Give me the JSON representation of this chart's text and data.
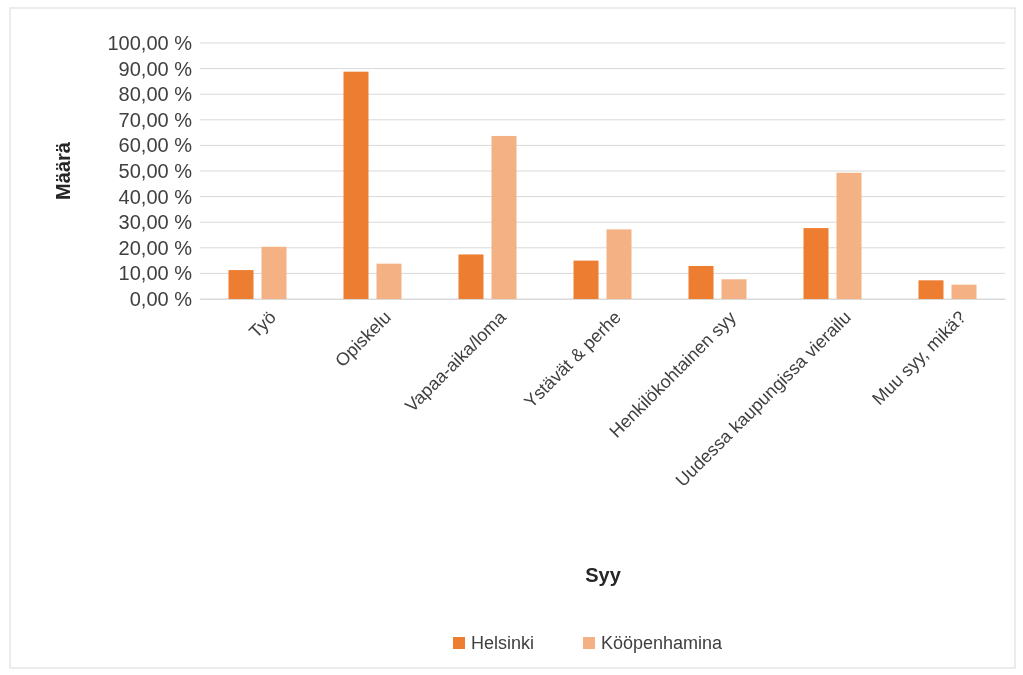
{
  "chart_data": {
    "type": "bar",
    "xlabel": "Syy",
    "ylabel": "Määrä",
    "categories": [
      "Työ",
      "Opiskelu",
      "Vapaa-aika/loma",
      "Ystävät & perhe",
      "Henkilökohtainen syy",
      "Uudessa kaupungissa vierailu",
      "Muu syy, mikä?"
    ],
    "series": [
      {
        "name": "Helsinki",
        "color": "#ed7d31",
        "values": [
          11.3,
          88.8,
          17.4,
          15.0,
          12.9,
          27.7,
          7.3
        ]
      },
      {
        "name": "Kööpenhamina",
        "color": "#f4b183",
        "values": [
          20.4,
          13.8,
          63.7,
          27.2,
          7.7,
          49.3,
          5.6
        ]
      }
    ],
    "ylim": [
      0,
      100
    ],
    "yticks": [
      {
        "value": 0,
        "label": "0,00 %"
      },
      {
        "value": 10,
        "label": "10,00 %"
      },
      {
        "value": 20,
        "label": "20,00 %"
      },
      {
        "value": 30,
        "label": "30,00 %"
      },
      {
        "value": 40,
        "label": "40,00 %"
      },
      {
        "value": 50,
        "label": "50,00 %"
      },
      {
        "value": 60,
        "label": "60,00 %"
      },
      {
        "value": 70,
        "label": "70,00 %"
      },
      {
        "value": 80,
        "label": "80,00 %"
      },
      {
        "value": 90,
        "label": "90,00 %"
      },
      {
        "value": 100,
        "label": "100,00 %"
      }
    ],
    "grid": "y",
    "legend": "bottom"
  }
}
